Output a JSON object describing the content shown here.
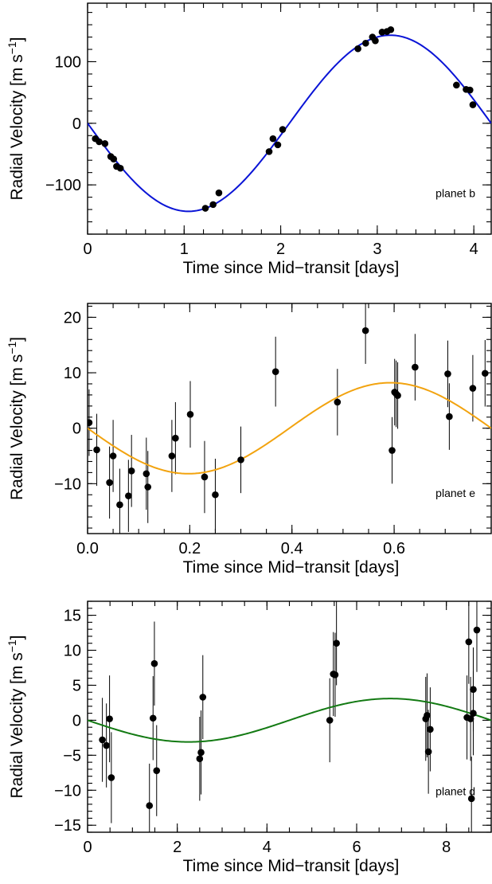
{
  "chart_data": [
    {
      "type": "scatter",
      "panel_label": "planet b",
      "xlabel": "Time since Mid−transit [days]",
      "ylabel_main": "Radial Velocity [m s",
      "ylabel_sup": "−1",
      "ylabel_end": "]",
      "xlim": [
        0,
        4.18
      ],
      "ylim": [
        -180,
        195
      ],
      "xticks": [
        0,
        1,
        2,
        3,
        4
      ],
      "xtick_labels": [
        "0",
        "1",
        "2",
        "3",
        "4"
      ],
      "yticks": [
        -100,
        0,
        100
      ],
      "ytick_labels": [
        "−100",
        "0",
        "100"
      ],
      "minor_xtick_step": 0.2,
      "minor_ytick_step": 20,
      "grid": false,
      "model": {
        "type": "sine",
        "amplitude": 143,
        "period": 4.18,
        "color": "#0a14d6"
      },
      "points": [
        {
          "x": 0.08,
          "y": -25
        },
        {
          "x": 0.12,
          "y": -30
        },
        {
          "x": 0.18,
          "y": -33
        },
        {
          "x": 0.24,
          "y": -54
        },
        {
          "x": 0.27,
          "y": -58
        },
        {
          "x": 0.3,
          "y": -70
        },
        {
          "x": 0.34,
          "y": -73
        },
        {
          "x": 1.22,
          "y": -138
        },
        {
          "x": 1.3,
          "y": -132
        },
        {
          "x": 1.36,
          "y": -113
        },
        {
          "x": 1.88,
          "y": -46
        },
        {
          "x": 1.92,
          "y": -25
        },
        {
          "x": 1.97,
          "y": -35
        },
        {
          "x": 2.02,
          "y": -10
        },
        {
          "x": 2.8,
          "y": 121
        },
        {
          "x": 2.88,
          "y": 130
        },
        {
          "x": 2.95,
          "y": 140
        },
        {
          "x": 2.98,
          "y": 134
        },
        {
          "x": 3.05,
          "y": 148
        },
        {
          "x": 3.1,
          "y": 149
        },
        {
          "x": 3.14,
          "y": 152
        },
        {
          "x": 3.82,
          "y": 62
        },
        {
          "x": 3.92,
          "y": 55
        },
        {
          "x": 3.96,
          "y": 54
        },
        {
          "x": 3.99,
          "y": 30
        }
      ]
    },
    {
      "type": "scatter",
      "panel_label": "planet e",
      "xlabel": "Time since Mid−transit [days]",
      "ylabel_main": "Radial Velocity [m s",
      "ylabel_sup": "−1",
      "ylabel_end": "]",
      "xlim": [
        0,
        0.79
      ],
      "ylim": [
        -19,
        22.5
      ],
      "xticks": [
        0,
        0.2,
        0.4,
        0.6
      ],
      "xtick_labels": [
        "0.0",
        "0.2",
        "0.4",
        "0.6"
      ],
      "yticks": [
        -10,
        0,
        10,
        20
      ],
      "ytick_labels": [
        "−10",
        "0",
        "10",
        "20"
      ],
      "minor_xtick_step": 0.05,
      "minor_ytick_step": 2,
      "grid": false,
      "model": {
        "type": "sine",
        "amplitude": 8.2,
        "period": 0.79,
        "color": "#f2a30f"
      },
      "points": [
        {
          "x": 0.003,
          "y": 1.0,
          "err": 6.0
        },
        {
          "x": 0.018,
          "y": -3.9,
          "err": 6.5
        },
        {
          "x": 0.043,
          "y": -9.8,
          "err": 6.5
        },
        {
          "x": 0.05,
          "y": -5.0,
          "err": 6.5
        },
        {
          "x": 0.063,
          "y": -13.8,
          "err": 6.5
        },
        {
          "x": 0.08,
          "y": -12.2,
          "err": 6.5
        },
        {
          "x": 0.086,
          "y": -7.7,
          "err": 6.5
        },
        {
          "x": 0.115,
          "y": -8.2,
          "err": 6.5
        },
        {
          "x": 0.118,
          "y": -10.6,
          "err": 6.5
        },
        {
          "x": 0.165,
          "y": -5.0,
          "err": 6.5
        },
        {
          "x": 0.172,
          "y": -1.8,
          "err": 6.5
        },
        {
          "x": 0.201,
          "y": 2.5,
          "err": 6.0
        },
        {
          "x": 0.229,
          "y": -8.8,
          "err": 6.5
        },
        {
          "x": 0.25,
          "y": -12.0,
          "err": 6.5
        },
        {
          "x": 0.3,
          "y": -5.7,
          "err": 6.0
        },
        {
          "x": 0.368,
          "y": 10.2,
          "err": 6.3
        },
        {
          "x": 0.489,
          "y": 4.7,
          "err": 6.0
        },
        {
          "x": 0.544,
          "y": 17.6,
          "err": 6.0
        },
        {
          "x": 0.596,
          "y": -4.0,
          "err": 6.0
        },
        {
          "x": 0.601,
          "y": 6.5,
          "err": 6.0
        },
        {
          "x": 0.604,
          "y": 6.2,
          "err": 6.0
        },
        {
          "x": 0.607,
          "y": 5.9,
          "err": 6.0
        },
        {
          "x": 0.641,
          "y": 11.0,
          "err": 6.0
        },
        {
          "x": 0.705,
          "y": 9.8,
          "err": 6.0
        },
        {
          "x": 0.708,
          "y": 2.1,
          "err": 6.0
        },
        {
          "x": 0.754,
          "y": 7.2,
          "err": 6.0
        },
        {
          "x": 0.778,
          "y": 9.9,
          "err": 6.0
        }
      ]
    },
    {
      "type": "scatter",
      "panel_label": "planet d",
      "xlabel": "Time since Mid−transit [days]",
      "ylabel_main": "Radial Velocity [m s",
      "ylabel_sup": "−1",
      "ylabel_end": "]",
      "xlim": [
        0,
        9.0
      ],
      "ylim": [
        -16,
        17
      ],
      "xticks": [
        0,
        2,
        4,
        6,
        8
      ],
      "xtick_labels": [
        "0",
        "2",
        "4",
        "6",
        "8"
      ],
      "yticks": [
        -15,
        -10,
        -5,
        0,
        5,
        10,
        15
      ],
      "ytick_labels": [
        "−15",
        "−10",
        "−5",
        "0",
        "5",
        "10",
        "15"
      ],
      "minor_xtick_step": 0.5,
      "minor_ytick_step": 1,
      "grid": false,
      "model": {
        "type": "sine",
        "amplitude": 3.1,
        "period": 9.0,
        "color": "#137a13"
      },
      "points": [
        {
          "x": 0.33,
          "y": -2.8,
          "err": 6.0
        },
        {
          "x": 0.42,
          "y": -3.6,
          "err": 6.0
        },
        {
          "x": 0.49,
          "y": 0.2,
          "err": 6.2
        },
        {
          "x": 0.53,
          "y": -8.2,
          "err": 6.5
        },
        {
          "x": 1.38,
          "y": -12.2,
          "err": 6.0
        },
        {
          "x": 1.46,
          "y": 0.3,
          "err": 6.0
        },
        {
          "x": 1.49,
          "y": 8.1,
          "err": 6.0
        },
        {
          "x": 1.54,
          "y": -7.2,
          "err": 6.5
        },
        {
          "x": 2.5,
          "y": -5.5,
          "err": 6.0
        },
        {
          "x": 2.53,
          "y": -4.6,
          "err": 6.0
        },
        {
          "x": 2.57,
          "y": 3.3,
          "err": 6.0
        },
        {
          "x": 5.4,
          "y": 0.0,
          "err": 6.0
        },
        {
          "x": 5.48,
          "y": 6.6,
          "err": 6.0
        },
        {
          "x": 5.52,
          "y": 6.5,
          "err": 6.0
        },
        {
          "x": 5.55,
          "y": 11.0,
          "err": 6.0
        },
        {
          "x": 7.54,
          "y": 0.2,
          "err": 6.0
        },
        {
          "x": 7.57,
          "y": 0.7,
          "err": 6.0
        },
        {
          "x": 7.6,
          "y": -4.5,
          "err": 6.0
        },
        {
          "x": 7.64,
          "y": -1.3,
          "err": 6.0
        },
        {
          "x": 8.46,
          "y": 0.4,
          "err": 6.0
        },
        {
          "x": 8.5,
          "y": 11.2,
          "err": 6.0
        },
        {
          "x": 8.54,
          "y": 0.2,
          "err": 6.0
        },
        {
          "x": 8.56,
          "y": -11.2,
          "err": 6.0
        },
        {
          "x": 8.6,
          "y": 4.4,
          "err": 6.0
        },
        {
          "x": 8.6,
          "y": 1.0,
          "err": 6.0
        },
        {
          "x": 8.68,
          "y": 12.9,
          "err": 6.0
        }
      ]
    }
  ]
}
